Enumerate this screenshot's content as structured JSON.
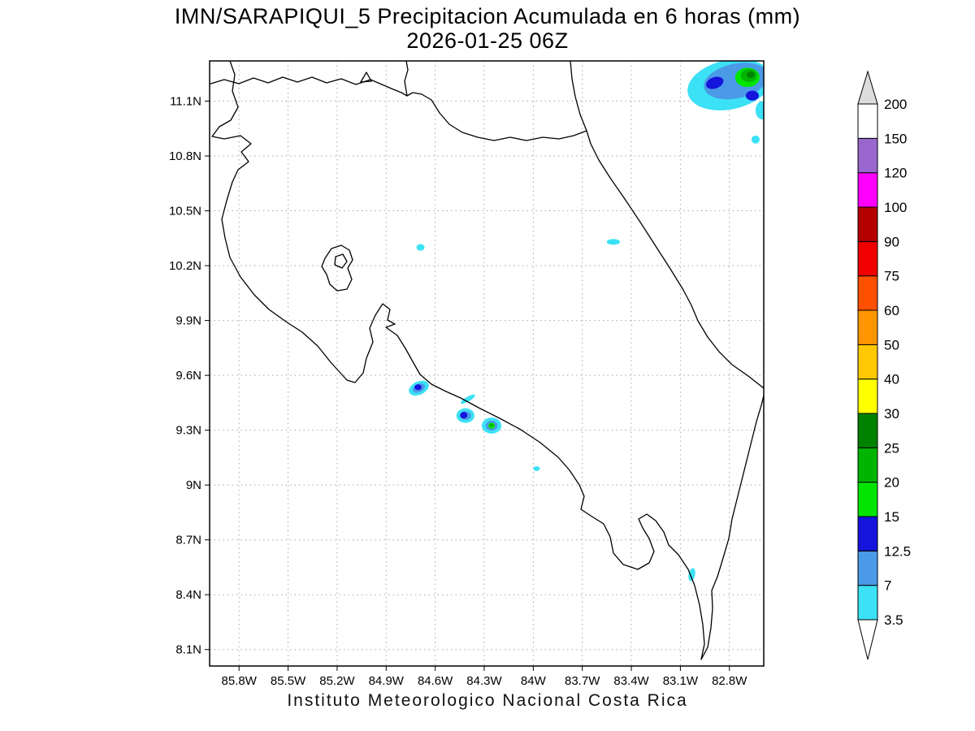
{
  "title": {
    "line1": "IMN/SARAPIQUI_5 Precipitacion Acumulada en 6 horas (mm)",
    "line2": "2026-01-25 06Z"
  },
  "caption": "Instituto Meteorologico Nacional Costa Rica",
  "chart_data": {
    "type": "heatmap",
    "subtype": "filled-contour-precipitation-map",
    "title": "IMN/SARAPIQUI_5 Precipitacion Acumulada en 6 horas (mm)",
    "subtitle": "2026-01-25 06Z",
    "variable": "Precipitacion Acumulada en 6 horas",
    "units": "mm",
    "valid_time": "2026-01-25 06Z",
    "region": "Costa Rica",
    "grid": "dotted",
    "geo_extent": {
      "lon_west": 85.98,
      "lon_east": 82.59,
      "lat_south": 8.01,
      "lat_north": 11.32
    },
    "lat_ticks": [
      "11.1N",
      "10.8N",
      "10.5N",
      "10.2N",
      "9.9N",
      "9.6N",
      "9.3N",
      "9N",
      "8.7N",
      "8.4N",
      "8.1N"
    ],
    "lon_ticks": [
      "85.8W",
      "85.5W",
      "85.2W",
      "84.9W",
      "84.6W",
      "84.3W",
      "84W",
      "83.7W",
      "83.4W",
      "83.1W",
      "82.8W"
    ],
    "colorbar": {
      "position": "right",
      "levels": [
        3.5,
        7,
        12.5,
        15,
        20,
        25,
        30,
        40,
        50,
        60,
        75,
        90,
        100,
        120,
        150,
        200
      ],
      "colors_low_to_high": [
        "#3CE1F5",
        "#4A9AE8",
        "#1414DC",
        "#00E400",
        "#00B400",
        "#008200",
        "#FFFF00",
        "#FFC800",
        "#FF9600",
        "#FF5000",
        "#F00000",
        "#B40000",
        "#FF00FF",
        "#9966CD",
        "#FFFFFF"
      ],
      "under_color": "#FFFFFF",
      "over_color": "#DCDCDC"
    },
    "precip_cells": [
      {
        "lon": 82.8,
        "lat": 11.19,
        "rx_deg": 0.26,
        "ry_deg": 0.135,
        "rot": -12,
        "mm": 3.5
      },
      {
        "lon": 82.6,
        "lat": 11.05,
        "rx_deg": 0.04,
        "ry_deg": 0.05,
        "rot": 0,
        "mm": 3.5
      },
      {
        "lon": 82.76,
        "lat": 11.21,
        "rx_deg": 0.2,
        "ry_deg": 0.095,
        "rot": -12,
        "mm": 7
      },
      {
        "lon": 82.89,
        "lat": 11.2,
        "rx_deg": 0.055,
        "ry_deg": 0.031,
        "rot": -20,
        "mm": 12.5
      },
      {
        "lon": 82.66,
        "lat": 11.13,
        "rx_deg": 0.04,
        "ry_deg": 0.027,
        "rot": 0,
        "mm": 12.5
      },
      {
        "lon": 82.69,
        "lat": 11.23,
        "rx_deg": 0.075,
        "ry_deg": 0.053,
        "rot": 0,
        "mm": 15
      },
      {
        "lon": 82.68,
        "lat": 11.24,
        "rx_deg": 0.05,
        "ry_deg": 0.036,
        "rot": 0,
        "mm": 20
      },
      {
        "lon": 82.67,
        "lat": 11.245,
        "rx_deg": 0.025,
        "ry_deg": 0.018,
        "rot": 0,
        "mm": 25
      },
      {
        "lon": 82.64,
        "lat": 10.89,
        "rx_deg": 0.025,
        "ry_deg": 0.022,
        "rot": 0,
        "mm": 3.5
      },
      {
        "lon": 84.69,
        "lat": 10.3,
        "rx_deg": 0.025,
        "ry_deg": 0.018,
        "rot": 0,
        "mm": 3.5
      },
      {
        "lon": 83.51,
        "lat": 10.33,
        "rx_deg": 0.04,
        "ry_deg": 0.016,
        "rot": 0,
        "mm": 3.5
      },
      {
        "lon": 84.7,
        "lat": 9.53,
        "rx_deg": 0.065,
        "ry_deg": 0.036,
        "rot": -25,
        "mm": 3.5
      },
      {
        "lon": 84.7,
        "lat": 9.53,
        "rx_deg": 0.04,
        "ry_deg": 0.022,
        "rot": -25,
        "mm": 7
      },
      {
        "lon": 84.705,
        "lat": 9.535,
        "rx_deg": 0.022,
        "ry_deg": 0.016,
        "rot": 0,
        "mm": 12.5
      },
      {
        "lon": 84.4,
        "lat": 9.47,
        "rx_deg": 0.05,
        "ry_deg": 0.013,
        "rot": -30,
        "mm": 3.5
      },
      {
        "lon": 84.415,
        "lat": 9.38,
        "rx_deg": 0.055,
        "ry_deg": 0.04,
        "rot": 0,
        "mm": 3.5
      },
      {
        "lon": 84.415,
        "lat": 9.38,
        "rx_deg": 0.035,
        "ry_deg": 0.024,
        "rot": 0,
        "mm": 7
      },
      {
        "lon": 84.425,
        "lat": 9.382,
        "rx_deg": 0.022,
        "ry_deg": 0.018,
        "rot": 0,
        "mm": 12.5
      },
      {
        "lon": 84.255,
        "lat": 9.325,
        "rx_deg": 0.06,
        "ry_deg": 0.044,
        "rot": 0,
        "mm": 3.5
      },
      {
        "lon": 84.255,
        "lat": 9.325,
        "rx_deg": 0.037,
        "ry_deg": 0.027,
        "rot": 0,
        "mm": 7
      },
      {
        "lon": 84.255,
        "lat": 9.325,
        "rx_deg": 0.02,
        "ry_deg": 0.016,
        "rot": 0,
        "mm": 15
      },
      {
        "lon": 84.255,
        "lat": 9.327,
        "rx_deg": 0.011,
        "ry_deg": 0.009,
        "rot": 0,
        "mm": 20
      },
      {
        "lon": 83.98,
        "lat": 9.09,
        "rx_deg": 0.02,
        "ry_deg": 0.013,
        "rot": 0,
        "mm": 3.5
      },
      {
        "lon": 83.03,
        "lat": 8.51,
        "rx_deg": 0.02,
        "ry_deg": 0.036,
        "rot": 12,
        "mm": 3.5
      }
    ]
  }
}
